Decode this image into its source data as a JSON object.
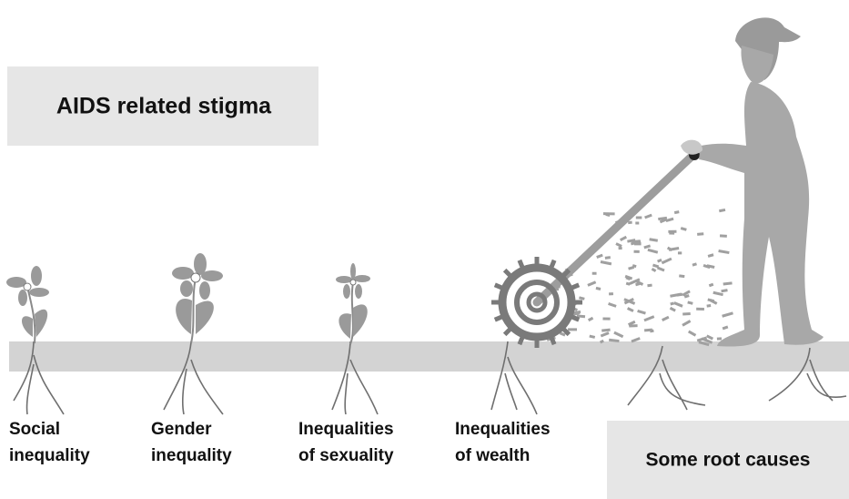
{
  "header": {
    "title": "AIDS related stigma"
  },
  "roots": [
    {
      "lines": [
        "Social",
        "inequality"
      ]
    },
    {
      "lines": [
        "Gender",
        "inequality"
      ]
    },
    {
      "lines": [
        "Inequalities",
        "of sexuality"
      ]
    },
    {
      "lines": [
        "Inequalities",
        "of wealth"
      ]
    }
  ],
  "footer": {
    "label": "Some root causes"
  }
}
